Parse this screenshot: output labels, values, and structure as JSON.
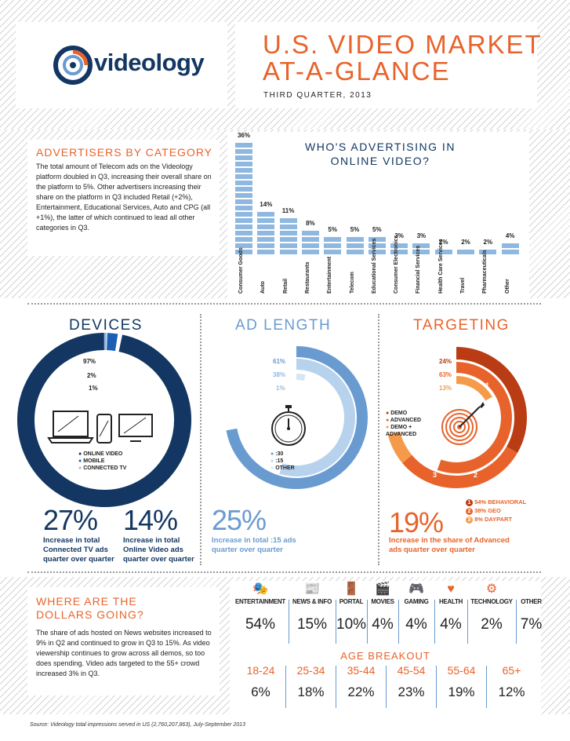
{
  "header": {
    "logo_text": "videology",
    "title_line1": "U.S. VIDEO MARKET",
    "title_line2": "AT-A-GLANCE",
    "subtitle": "THIRD QUARTER, 2013"
  },
  "advertisers": {
    "heading": "ADVERTISERS BY CATEGORY",
    "body": "The total amount of Telecom ads on the Videology platform doubled in Q3, increasing their overall share on the platform to 5%. Other advertisers increasing their share on the platform in Q3 included Retail (+2%), Entertainment, Educational Services, Auto and CPG (all +1%), the latter of which continued to lead all other categories in Q3."
  },
  "chart_data": {
    "type": "bar",
    "title": "WHO'S ADVERTISING IN ONLINE VIDEO?",
    "categories": [
      "Consumer Goods",
      "Auto",
      "Retail",
      "Restaurants",
      "Entertainment",
      "Telecom",
      "Educational Services",
      "Consumer Electronics",
      "Financial Services",
      "Health Care Services",
      "Travel",
      "Pharmaceuticals",
      "Other"
    ],
    "values": [
      36,
      14,
      11,
      8,
      5,
      5,
      5,
      3,
      3,
      2,
      2,
      2,
      4
    ],
    "value_labels": [
      "36%",
      "14%",
      "11%",
      "8%",
      "5%",
      "5%",
      "5%",
      "3%",
      "3%",
      "2%",
      "2%",
      "2%",
      "4%"
    ],
    "color": "#8fb8e0"
  },
  "devices": {
    "heading": "DEVICES",
    "pcts": [
      "97%",
      "2%",
      "1%"
    ],
    "shares": [
      97,
      2,
      1
    ],
    "legend": [
      "ONLINE VIDEO",
      "MOBILE",
      "CONNECTED TV"
    ],
    "stat1_value": "27%",
    "stat1_text": "Increase in total Connected TV ads quarter over quarter",
    "stat2_value": "14%",
    "stat2_text": "Increase in total Online Video ads quarter over quarter"
  },
  "adlength": {
    "heading": "AD LENGTH",
    "pcts": [
      "61%",
      "38%",
      "1%"
    ],
    "shares": [
      61,
      38,
      1
    ],
    "legend": [
      ":30",
      ":15",
      "OTHER"
    ],
    "stat_value": "25%",
    "stat_text": "Increase in total :15 ads quarter over quarter"
  },
  "targeting": {
    "heading": "TARGETING",
    "pcts": [
      "24%",
      "63%",
      "13%"
    ],
    "shares": [
      24,
      63,
      13
    ],
    "legend": [
      "DEMO",
      "ADVANCED",
      "DEMO + ADVANCED"
    ],
    "arc_nums": [
      "1",
      "2",
      "3"
    ],
    "breakdown": [
      "54% BEHAVIORAL",
      "38% GEO",
      "8% DAYPART"
    ],
    "stat_value": "19%",
    "stat_text": "Increase in the share of Advanced ads quarter over quarter"
  },
  "dollars": {
    "heading_line1": "WHERE ARE THE",
    "heading_line2": "DOLLARS GOING?",
    "body": "The share of ads hosted on News websites increased to 9% in Q2 and continued to grow in Q3 to 15%. As video viewership continues to grow across all demos, so too does spending.  Video ads targeted to the 55+ crowd increased 3% in Q3.",
    "categories": [
      {
        "label": "ENTERTAINMENT",
        "value": "54%",
        "icon": "theater-masks-icon"
      },
      {
        "label": "NEWS & INFO",
        "value": "15%",
        "icon": "newspaper-icon"
      },
      {
        "label": "PORTAL",
        "value": "10%",
        "icon": "door-icon"
      },
      {
        "label": "MOVIES",
        "value": "4%",
        "icon": "clapperboard-icon"
      },
      {
        "label": "GAMING",
        "value": "4%",
        "icon": "gamepad-icon"
      },
      {
        "label": "HEALTH",
        "value": "4%",
        "icon": "heart-icon"
      },
      {
        "label": "TECHNOLOGY",
        "value": "2%",
        "icon": "gears-icon"
      },
      {
        "label": "OTHER",
        "value": "7%",
        "icon": ""
      }
    ],
    "age_heading": "AGE BREAKOUT",
    "ages": [
      {
        "label": "18-24",
        "value": "6%"
      },
      {
        "label": "25-34",
        "value": "18%"
      },
      {
        "label": "35-44",
        "value": "22%"
      },
      {
        "label": "45-54",
        "value": "23%"
      },
      {
        "label": "55-64",
        "value": "19%"
      },
      {
        "label": "65+",
        "value": "12%"
      }
    ]
  },
  "footer": {
    "source": "Source: Videology total impressions served in US (2,760,207,863),  July-September 2013"
  },
  "colors": {
    "orange": "#e8632b",
    "navy": "#133762",
    "light_blue": "#8fb8e0",
    "mid_blue": "#6a9bd0"
  }
}
